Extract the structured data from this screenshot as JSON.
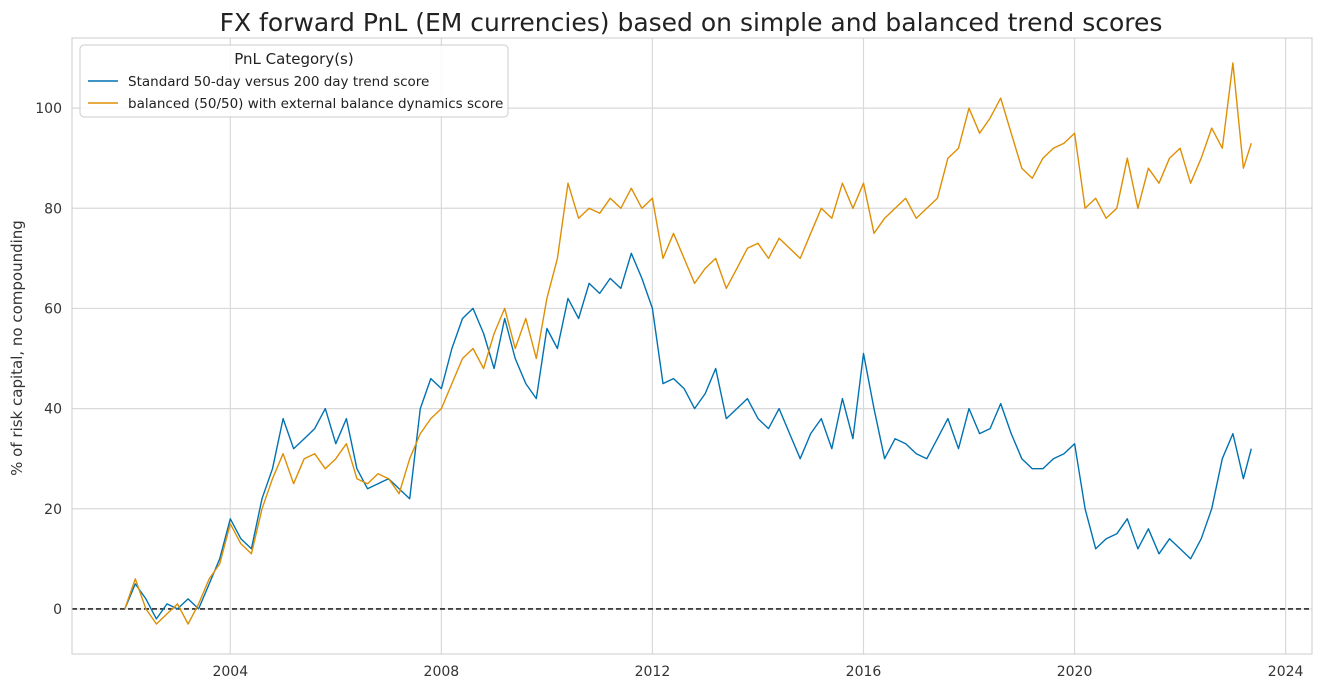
{
  "chart_data": {
    "type": "line",
    "title": "FX forward PnL (EM currencies) based on simple and balanced trend scores",
    "xlabel": "",
    "ylabel": "% of risk capital, no compounding",
    "xlim": [
      2001.0,
      2024.5
    ],
    "ylim": [
      -9,
      114
    ],
    "xticks": [
      2004,
      2008,
      2012,
      2016,
      2020,
      2024
    ],
    "yticks": [
      0,
      20,
      40,
      60,
      80,
      100
    ],
    "grid": true,
    "zero_line": {
      "y": 0,
      "style": "dashed",
      "color": "#000000"
    },
    "legend": {
      "title": "PnL Category(s)",
      "placement": "top-left",
      "entries": [
        "Standard 50-day versus 200 day trend score",
        "balanced (50/50) with external balance dynamics score"
      ]
    },
    "series": [
      {
        "name": "Standard 50-day versus 200 day trend score",
        "color": "#0072b2",
        "x": [
          2002.0,
          2002.2,
          2002.4,
          2002.6,
          2002.8,
          2003.0,
          2003.2,
          2003.4,
          2003.6,
          2003.8,
          2004.0,
          2004.2,
          2004.4,
          2004.6,
          2004.8,
          2005.0,
          2005.2,
          2005.4,
          2005.6,
          2005.8,
          2006.0,
          2006.2,
          2006.4,
          2006.6,
          2006.8,
          2007.0,
          2007.2,
          2007.4,
          2007.6,
          2007.8,
          2008.0,
          2008.2,
          2008.4,
          2008.6,
          2008.8,
          2009.0,
          2009.2,
          2009.4,
          2009.6,
          2009.8,
          2010.0,
          2010.2,
          2010.4,
          2010.6,
          2010.8,
          2011.0,
          2011.2,
          2011.4,
          2011.6,
          2011.8,
          2012.0,
          2012.2,
          2012.4,
          2012.6,
          2012.8,
          2013.0,
          2013.2,
          2013.4,
          2013.6,
          2013.8,
          2014.0,
          2014.2,
          2014.4,
          2014.6,
          2014.8,
          2015.0,
          2015.2,
          2015.4,
          2015.6,
          2015.8,
          2016.0,
          2016.2,
          2016.4,
          2016.6,
          2016.8,
          2017.0,
          2017.2,
          2017.4,
          2017.6,
          2017.8,
          2018.0,
          2018.2,
          2018.4,
          2018.6,
          2018.8,
          2019.0,
          2019.2,
          2019.4,
          2019.6,
          2019.8,
          2020.0,
          2020.2,
          2020.4,
          2020.6,
          2020.8,
          2021.0,
          2021.2,
          2021.4,
          2021.6,
          2021.8,
          2022.0,
          2022.2,
          2022.4,
          2022.6,
          2022.8,
          2023.0,
          2023.2,
          2023.35
        ],
        "y": [
          0,
          5,
          2,
          -2,
          1,
          0,
          2,
          0,
          5,
          10,
          18,
          14,
          12,
          22,
          28,
          38,
          32,
          34,
          36,
          40,
          33,
          38,
          28,
          24,
          25,
          26,
          24,
          22,
          40,
          46,
          44,
          52,
          58,
          60,
          55,
          48,
          58,
          50,
          45,
          42,
          56,
          52,
          62,
          58,
          65,
          63,
          66,
          64,
          71,
          66,
          60,
          45,
          46,
          44,
          40,
          43,
          48,
          38,
          40,
          42,
          38,
          36,
          40,
          35,
          30,
          35,
          38,
          32,
          42,
          34,
          51,
          40,
          30,
          34,
          33,
          31,
          30,
          34,
          38,
          32,
          40,
          35,
          36,
          41,
          35,
          30,
          28,
          28,
          30,
          31,
          33,
          20,
          12,
          14,
          15,
          18,
          12,
          16,
          11,
          14,
          12,
          10,
          14,
          20,
          30,
          35,
          26,
          32
        ]
      },
      {
        "name": "balanced (50/50) with external balance dynamics score",
        "color": "#de8f05",
        "x": [
          2002.0,
          2002.2,
          2002.4,
          2002.6,
          2002.8,
          2003.0,
          2003.2,
          2003.4,
          2003.6,
          2003.8,
          2004.0,
          2004.2,
          2004.4,
          2004.6,
          2004.8,
          2005.0,
          2005.2,
          2005.4,
          2005.6,
          2005.8,
          2006.0,
          2006.2,
          2006.4,
          2006.6,
          2006.8,
          2007.0,
          2007.2,
          2007.4,
          2007.6,
          2007.8,
          2008.0,
          2008.2,
          2008.4,
          2008.6,
          2008.8,
          2009.0,
          2009.2,
          2009.4,
          2009.6,
          2009.8,
          2010.0,
          2010.2,
          2010.4,
          2010.6,
          2010.8,
          2011.0,
          2011.2,
          2011.4,
          2011.6,
          2011.8,
          2012.0,
          2012.2,
          2012.4,
          2012.6,
          2012.8,
          2013.0,
          2013.2,
          2013.4,
          2013.6,
          2013.8,
          2014.0,
          2014.2,
          2014.4,
          2014.6,
          2014.8,
          2015.0,
          2015.2,
          2015.4,
          2015.6,
          2015.8,
          2016.0,
          2016.2,
          2016.4,
          2016.6,
          2016.8,
          2017.0,
          2017.2,
          2017.4,
          2017.6,
          2017.8,
          2018.0,
          2018.2,
          2018.4,
          2018.6,
          2018.8,
          2019.0,
          2019.2,
          2019.4,
          2019.6,
          2019.8,
          2020.0,
          2020.2,
          2020.4,
          2020.6,
          2020.8,
          2021.0,
          2021.2,
          2021.4,
          2021.6,
          2021.8,
          2022.0,
          2022.2,
          2022.4,
          2022.6,
          2022.8,
          2023.0,
          2023.2,
          2023.35
        ],
        "y": [
          0,
          6,
          0,
          -3,
          -1,
          1,
          -3,
          1,
          6,
          9,
          17,
          13,
          11,
          20,
          26,
          31,
          25,
          30,
          31,
          28,
          30,
          33,
          26,
          25,
          27,
          26,
          23,
          30,
          35,
          38,
          40,
          45,
          50,
          52,
          48,
          55,
          60,
          52,
          58,
          50,
          62,
          70,
          85,
          78,
          80,
          79,
          82,
          80,
          84,
          80,
          82,
          70,
          75,
          70,
          65,
          68,
          70,
          64,
          68,
          72,
          73,
          70,
          74,
          72,
          70,
          75,
          80,
          78,
          85,
          80,
          85,
          75,
          78,
          80,
          82,
          78,
          80,
          82,
          90,
          92,
          100,
          95,
          98,
          102,
          95,
          88,
          86,
          90,
          92,
          93,
          95,
          80,
          82,
          78,
          80,
          90,
          80,
          88,
          85,
          90,
          92,
          85,
          90,
          96,
          92,
          109,
          88,
          93
        ]
      }
    ]
  }
}
